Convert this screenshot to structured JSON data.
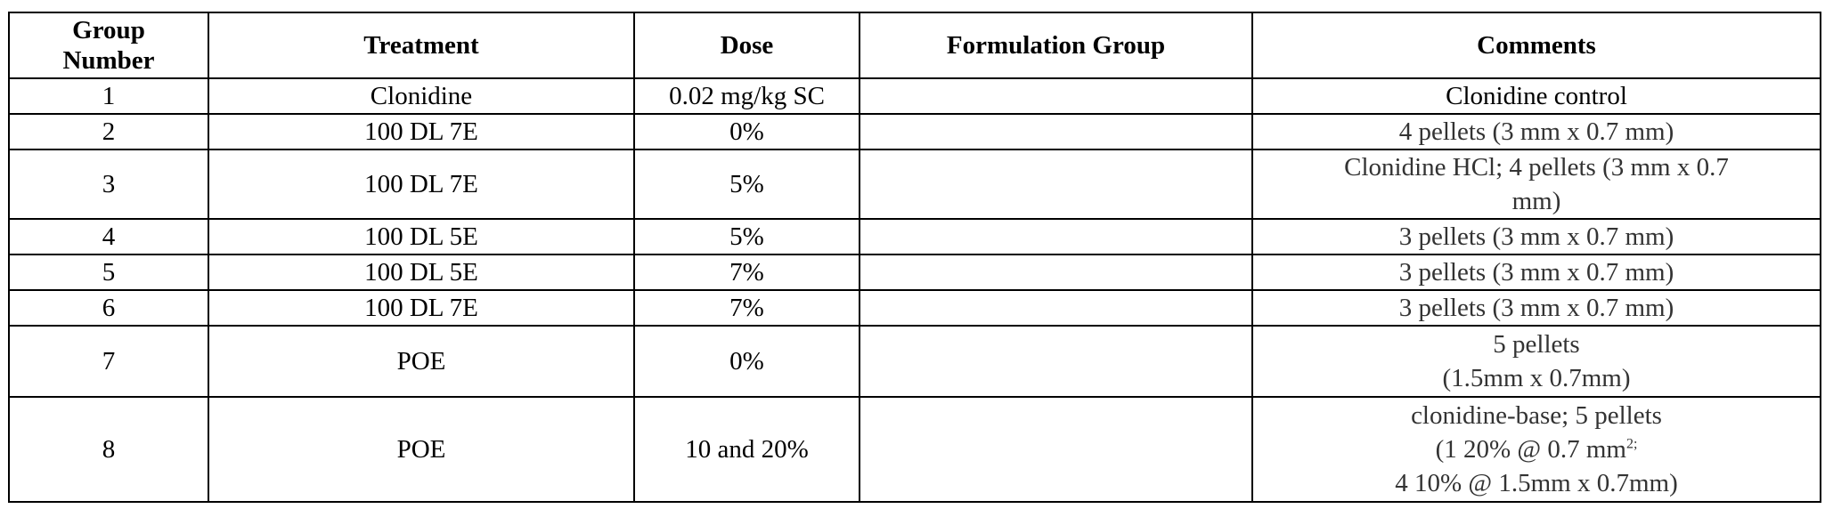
{
  "table": {
    "headers": {
      "group_number_line1": "Group",
      "group_number_line2": "Number",
      "treatment": "Treatment",
      "dose": "Dose",
      "formulation_group": "Formulation Group",
      "comments": "Comments"
    },
    "rows": [
      {
        "group": "1",
        "treatment": "Clonidine",
        "dose": "0.02 mg/kg SC",
        "formulation": "",
        "comments": [
          "Clonidine control"
        ]
      },
      {
        "group": "2",
        "treatment": "100 DL 7E",
        "dose": "0%",
        "formulation": "",
        "comments": [
          "4 pellets (3 mm x 0.7 mm)"
        ]
      },
      {
        "group": "3",
        "treatment": "100 DL 7E",
        "dose": "5%",
        "formulation": "",
        "comments": [
          "Clonidine HCl;   4 pellets (3 mm x 0.7",
          "mm)"
        ]
      },
      {
        "group": "4",
        "treatment": "100 DL 5E",
        "dose": "5%",
        "formulation": "",
        "comments": [
          "3 pellets (3 mm x 0.7 mm)"
        ]
      },
      {
        "group": "5",
        "treatment": "100 DL 5E",
        "dose": "7%",
        "formulation": "",
        "comments": [
          "3 pellets (3 mm x 0.7 mm)"
        ]
      },
      {
        "group": "6",
        "treatment": "100 DL 7E",
        "dose": "7%",
        "formulation": "",
        "comments": [
          "3 pellets (3 mm x 0.7 mm)"
        ]
      },
      {
        "group": "7",
        "treatment": "POE",
        "dose": "0%",
        "formulation": "",
        "comments": [
          "5 pellets",
          "(1.5mm x 0.7mm)"
        ]
      },
      {
        "group": "8",
        "treatment": "POE",
        "dose": "10 and 20%",
        "formulation": "",
        "comments": [
          "clonidine-base;  5 pellets",
          "(1 20% @ 0.7 mm",
          "4 10% @ 1.5mm x 0.7mm)"
        ],
        "comments_sup": "2;"
      }
    ]
  }
}
